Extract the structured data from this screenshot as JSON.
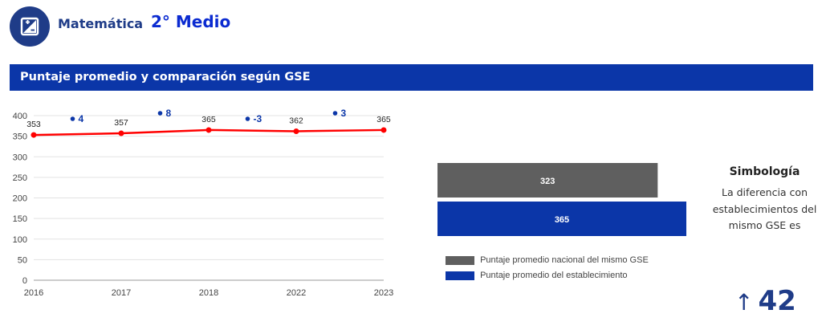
{
  "header": {
    "subject": "Matemática",
    "grade": "2° Medio"
  },
  "banner": {
    "title": "Puntaje promedio y comparación según GSE"
  },
  "chart_data": [
    {
      "type": "line",
      "x": [
        "2016",
        "2017",
        "2018",
        "2022",
        "2023"
      ],
      "series": [
        {
          "values": [
            353,
            357,
            365,
            362,
            365
          ],
          "color": "#ff0000"
        }
      ],
      "differences": [
        {
          "value": "4",
          "between": [
            "2016",
            "2017"
          ]
        },
        {
          "value": "8",
          "between": [
            "2017",
            "2018"
          ]
        },
        {
          "value": "-3",
          "between": [
            "2018",
            "2022"
          ]
        },
        {
          "value": "3",
          "between": [
            "2022",
            "2023"
          ]
        }
      ],
      "yticks": [
        0,
        50,
        100,
        150,
        200,
        250,
        300,
        350,
        400
      ],
      "ylim": [
        0,
        400
      ],
      "grid": true
    },
    {
      "type": "bar",
      "orientation": "horizontal",
      "series": [
        {
          "name": "Puntaje promedio nacional del mismo GSE",
          "value": 323,
          "color": "#5f5f5f"
        },
        {
          "name": "Puntaje promedio del establecimiento",
          "value": 365,
          "color": "#0b36a8"
        }
      ],
      "legend": "bottom"
    }
  ],
  "symbology": {
    "title": "Simbología",
    "text": "La diferencia con establecimientos del mismo GSE es",
    "arrow": "↑",
    "value": "42"
  }
}
